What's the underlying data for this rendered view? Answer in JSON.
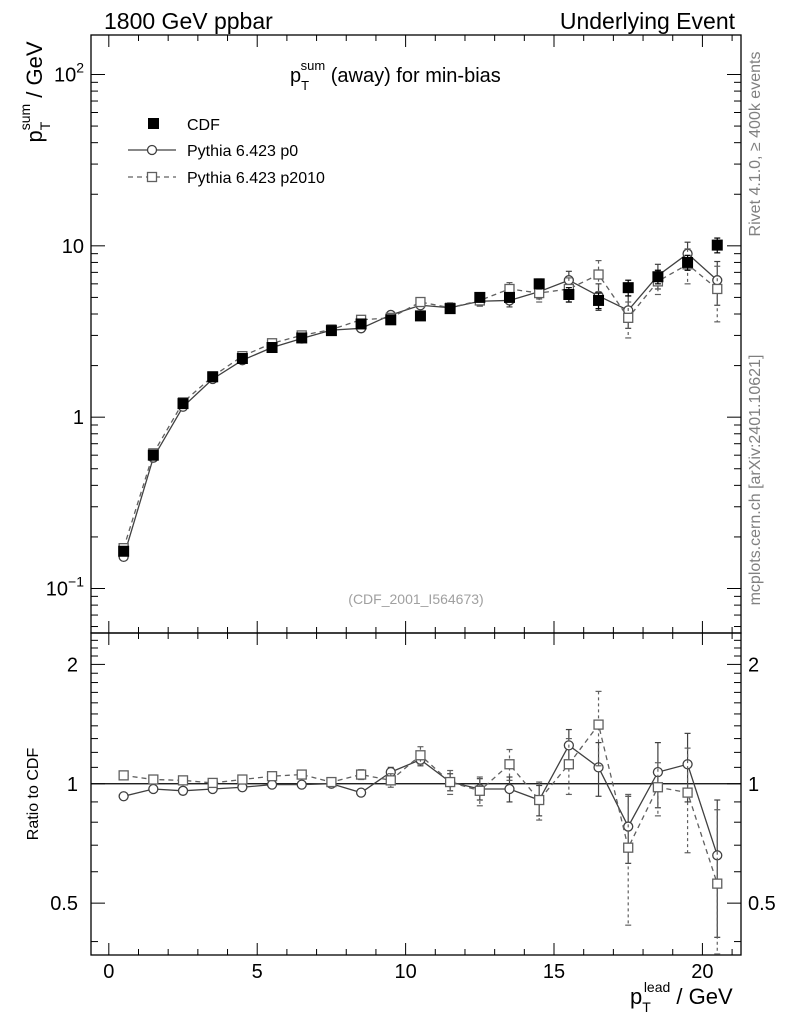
{
  "header": {
    "left": "1800 GeV ppbar",
    "right": "Underlying Event"
  },
  "side_labels": {
    "rivet": "Rivet 4.1.0, ≥ 400k events",
    "mcplots": "mcplots.cern.ch [arXiv:2401.10621]"
  },
  "analysis_id": "(CDF_2001_I564673)",
  "chart_data": [
    {
      "type": "scatter",
      "panel": "main",
      "title": "p_T^sum (away) for min-bias",
      "title_parts": {
        "base": "p",
        "sup": "sum",
        "sub": "T",
        "rest": " (away) for min-bias"
      },
      "ylabel": "p_T^sum / GeV",
      "ylabel_parts": {
        "base": "p",
        "sup": "sum",
        "sub": "T",
        "rest": " / GeV"
      },
      "yscale": "log",
      "ylim": [
        0.055,
        170
      ],
      "xlim": [
        -0.6,
        21.3
      ],
      "yticks": [
        {
          "value": 0.1,
          "base": "10",
          "exp": "−1"
        },
        {
          "value": 1,
          "base": "1",
          "exp": ""
        },
        {
          "value": 10,
          "base": "10",
          "exp": ""
        },
        {
          "value": 100,
          "base": "10",
          "exp": "2"
        }
      ],
      "legend": {
        "position": "top-left"
      },
      "series": [
        {
          "name": "CDF",
          "style": "data",
          "x": [
            0.5,
            1.5,
            2.5,
            3.5,
            4.5,
            5.5,
            6.5,
            7.5,
            8.5,
            9.5,
            10.5,
            11.5,
            12.5,
            13.5,
            14.5,
            15.5,
            16.5,
            17.5,
            18.5,
            19.5,
            20.5
          ],
          "values": [
            0.165,
            0.6,
            1.2,
            1.72,
            2.2,
            2.55,
            2.9,
            3.2,
            3.5,
            3.7,
            3.9,
            4.3,
            5.0,
            5.0,
            6.0,
            5.2,
            4.8,
            5.7,
            6.6,
            8.0,
            10.1
          ],
          "errors": [
            0.008,
            0.02,
            0.03,
            0.04,
            0.05,
            0.05,
            0.06,
            0.07,
            0.1,
            0.12,
            0.15,
            0.2,
            0.25,
            0.3,
            0.4,
            0.5,
            0.5,
            0.6,
            0.6,
            0.8,
            1.0
          ]
        },
        {
          "name": "Pythia 6.423 p0",
          "style": "solid-circle",
          "x": [
            0.5,
            1.5,
            2.5,
            3.5,
            4.5,
            5.5,
            6.5,
            7.5,
            8.5,
            9.5,
            10.5,
            11.5,
            12.5,
            13.5,
            14.5,
            15.5,
            16.5,
            17.5,
            18.5,
            19.5,
            20.5
          ],
          "values": [
            0.153,
            0.58,
            1.15,
            1.67,
            2.15,
            2.55,
            2.88,
            3.22,
            3.3,
            3.95,
            4.5,
            4.35,
            4.75,
            4.8,
            5.4,
            6.3,
            5.1,
            4.2,
            6.7,
            9.0,
            6.3
          ],
          "errors": [
            0.006,
            0.02,
            0.03,
            0.04,
            0.05,
            0.06,
            0.07,
            0.08,
            0.1,
            0.15,
            0.2,
            0.25,
            0.3,
            0.4,
            0.5,
            0.8,
            0.9,
            0.9,
            1.1,
            1.5,
            1.8
          ]
        },
        {
          "name": "Pythia 6.423 p2010",
          "style": "dashed-square",
          "x": [
            0.5,
            1.5,
            2.5,
            3.5,
            4.5,
            5.5,
            6.5,
            7.5,
            8.5,
            9.5,
            10.5,
            11.5,
            12.5,
            13.5,
            14.5,
            15.5,
            16.5,
            17.5,
            18.5,
            19.5,
            20.5
          ],
          "values": [
            0.172,
            0.615,
            1.22,
            1.73,
            2.27,
            2.7,
            3.0,
            3.25,
            3.7,
            3.8,
            4.7,
            4.35,
            4.8,
            5.6,
            5.3,
            5.6,
            6.8,
            3.8,
            6.2,
            7.8,
            5.6
          ],
          "errors": [
            0.007,
            0.02,
            0.03,
            0.04,
            0.05,
            0.06,
            0.07,
            0.08,
            0.12,
            0.15,
            0.25,
            0.3,
            0.35,
            0.5,
            0.6,
            0.9,
            1.4,
            0.9,
            1.0,
            1.8,
            2.0
          ]
        }
      ]
    },
    {
      "type": "scatter",
      "panel": "ratio",
      "ylabel": "Ratio to CDF",
      "yscale": "log",
      "ylim": [
        0.37,
        2.4
      ],
      "xlim": [
        -0.6,
        21.3
      ],
      "xlabel": "p_T^lead / GeV",
      "xlabel_parts": {
        "base": "p",
        "sup": "lead",
        "sub": "T",
        "rest": " / GeV"
      },
      "xticks": [
        0,
        5,
        10,
        15,
        20
      ],
      "yticks": [
        0.5,
        1,
        2
      ],
      "reference_line": 1,
      "series": [
        {
          "name": "Pythia 6.423 p0",
          "style": "solid-circle",
          "x": [
            0.5,
            1.5,
            2.5,
            3.5,
            4.5,
            5.5,
            6.5,
            7.5,
            8.5,
            9.5,
            10.5,
            11.5,
            12.5,
            13.5,
            14.5,
            15.5,
            16.5,
            17.5,
            18.5,
            19.5,
            20.5
          ],
          "values": [
            0.93,
            0.97,
            0.96,
            0.97,
            0.98,
            0.995,
            0.995,
            1.0,
            0.95,
            1.07,
            1.15,
            1.01,
            0.97,
            0.97,
            0.91,
            1.25,
            1.1,
            0.78,
            1.07,
            1.12,
            0.66
          ],
          "errors": [
            0.005,
            0.005,
            0.005,
            0.01,
            0.01,
            0.01,
            0.01,
            0.015,
            0.02,
            0.03,
            0.04,
            0.05,
            0.06,
            0.07,
            0.08,
            0.12,
            0.17,
            0.15,
            0.2,
            0.22,
            0.25
          ]
        },
        {
          "name": "Pythia 6.423 p2010",
          "style": "dashed-square",
          "x": [
            0.5,
            1.5,
            2.5,
            3.5,
            4.5,
            5.5,
            6.5,
            7.5,
            8.5,
            9.5,
            10.5,
            11.5,
            12.5,
            13.5,
            14.5,
            15.5,
            16.5,
            17.5,
            18.5,
            19.5,
            20.5
          ],
          "values": [
            1.05,
            1.025,
            1.02,
            1.005,
            1.025,
            1.045,
            1.055,
            1.01,
            1.055,
            1.02,
            1.18,
            1.01,
            0.96,
            1.12,
            0.91,
            1.12,
            1.41,
            0.69,
            0.98,
            0.95,
            0.56
          ],
          "errors": [
            0.005,
            0.005,
            0.01,
            0.01,
            0.01,
            0.015,
            0.015,
            0.02,
            0.03,
            0.04,
            0.06,
            0.07,
            0.08,
            0.1,
            0.1,
            0.18,
            0.3,
            0.25,
            0.15,
            0.28,
            0.3
          ]
        }
      ]
    }
  ]
}
